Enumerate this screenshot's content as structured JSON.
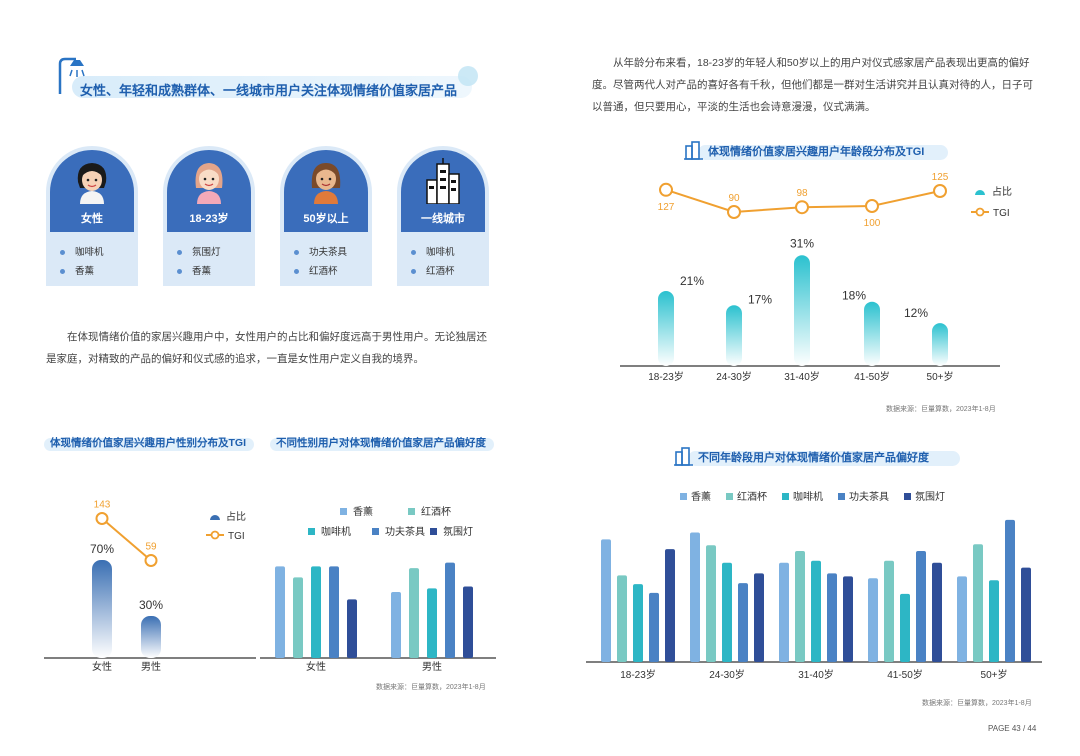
{
  "left": {
    "heading": "女性、年轻和成熟群体、一线城市用户关注体现情绪价值家居产品",
    "cards": [
      {
        "label": "女性",
        "items": [
          "咖啡机",
          "香薰"
        ]
      },
      {
        "label": "18-23岁",
        "items": [
          "氛围灯",
          "香薰"
        ]
      },
      {
        "label": "50岁以上",
        "items": [
          "功夫茶具",
          "红酒杯"
        ]
      },
      {
        "label": "一线城市",
        "items": [
          "咖啡机",
          "红酒杯"
        ]
      }
    ],
    "paragraph": "在体现情绪价值的家居兴趣用户中，女性用户的占比和偏好度远高于男性用户。无论独居还是家庭，对精致的产品的偏好和仪式感的追求，一直是女性用户定义自我的境界。",
    "gender_title": "体现情绪价值家居兴趣用户性别分布及TGI",
    "gender_pref_title": "不同性别用户对体现情绪价值家居产品偏好度",
    "source": "数据来源：巨量算数，2023年1-8月"
  },
  "right": {
    "paragraph": "从年龄分布来看，18-23岁的年轻人和50岁以上的用户对仪式感家居产品表现出更高的偏好度。尽管两代人对产品的喜好各有千秋，但他们都是一群对生活讲究并且认真对待的人，日子可以普通，但只要用心，平淡的生活也会诗意漫漫，仪式满满。",
    "age_title": "体现情绪价值家居兴趣用户年龄段分布及TGI",
    "age_pref_title": "不同年龄段用户对体现情绪价值家居产品偏好度",
    "source": "数据来源：巨量算数，2023年1-8月"
  },
  "page_number": "PAGE 43 / 44",
  "colors": {
    "title_blue": "#1f5fae",
    "tgi_orange": "#f0a030",
    "teal_gradient_top": "#2bc1cf",
    "blue_gradient_top": "#3a6fb3",
    "aroma": "#7fb2e2",
    "wine": "#79c9c3",
    "coffee": "#2db6c5",
    "tea": "#4a82c4",
    "lamp": "#2f4e98"
  },
  "chart_data": [
    {
      "type": "bar",
      "title": "体现情绪价值家居兴趣用户性别分布及TGI",
      "categories": [
        "女性",
        "男性"
      ],
      "series": [
        {
          "name": "占比",
          "values": [
            70,
            30
          ],
          "labels": [
            "70%",
            "30%"
          ]
        },
        {
          "name": "TGI",
          "type": "line",
          "values": [
            143,
            59
          ],
          "labels": [
            "143",
            "59"
          ]
        }
      ],
      "legend": "top-right"
    },
    {
      "type": "bar",
      "title": "不同性别用户对体现情绪价值家居产品偏好度",
      "categories": [
        "女性",
        "男性"
      ],
      "series": [
        {
          "name": "香薰",
          "values": [
            1.0,
            0.72
          ]
        },
        {
          "name": "红酒杯",
          "values": [
            0.88,
            0.98
          ]
        },
        {
          "name": "咖啡机",
          "values": [
            1.0,
            0.76
          ]
        },
        {
          "name": "功夫茶具",
          "values": [
            1.0,
            1.04
          ]
        },
        {
          "name": "氛围灯",
          "values": [
            0.64,
            0.78
          ]
        }
      ],
      "legend": "top"
    },
    {
      "type": "bar",
      "title": "体现情绪价值家居兴趣用户年龄段分布及TGI",
      "categories": [
        "18-23岁",
        "24-30岁",
        "31-40岁",
        "41-50岁",
        "50+岁"
      ],
      "series": [
        {
          "name": "占比",
          "values": [
            21,
            17,
            31,
            18,
            12
          ],
          "labels": [
            "21%",
            "17%",
            "31%",
            "18%",
            "12%"
          ]
        },
        {
          "name": "TGI",
          "type": "line",
          "values": [
            127,
            90,
            98,
            100,
            125
          ],
          "labels": [
            "127",
            "90",
            "98",
            "100",
            "125"
          ]
        }
      ],
      "legend": "top-right"
    },
    {
      "type": "bar",
      "title": "不同年龄段用户对体现情绪价值家居产品偏好度",
      "categories": [
        "18-23岁",
        "24-30岁",
        "31-40岁",
        "41-50岁",
        "50+岁"
      ],
      "series": [
        {
          "name": "香薰",
          "values": [
            1.26,
            1.33,
            1.02,
            0.86,
            0.88
          ]
        },
        {
          "name": "红酒杯",
          "values": [
            0.89,
            1.2,
            1.14,
            1.04,
            1.21
          ]
        },
        {
          "name": "咖啡机",
          "values": [
            0.8,
            1.02,
            1.04,
            0.7,
            0.84
          ]
        },
        {
          "name": "功夫茶具",
          "values": [
            0.71,
            0.81,
            0.91,
            1.14,
            1.46
          ]
        },
        {
          "name": "氛围灯",
          "values": [
            1.16,
            0.91,
            0.88,
            1.02,
            0.97
          ]
        }
      ],
      "legend": "top"
    }
  ]
}
